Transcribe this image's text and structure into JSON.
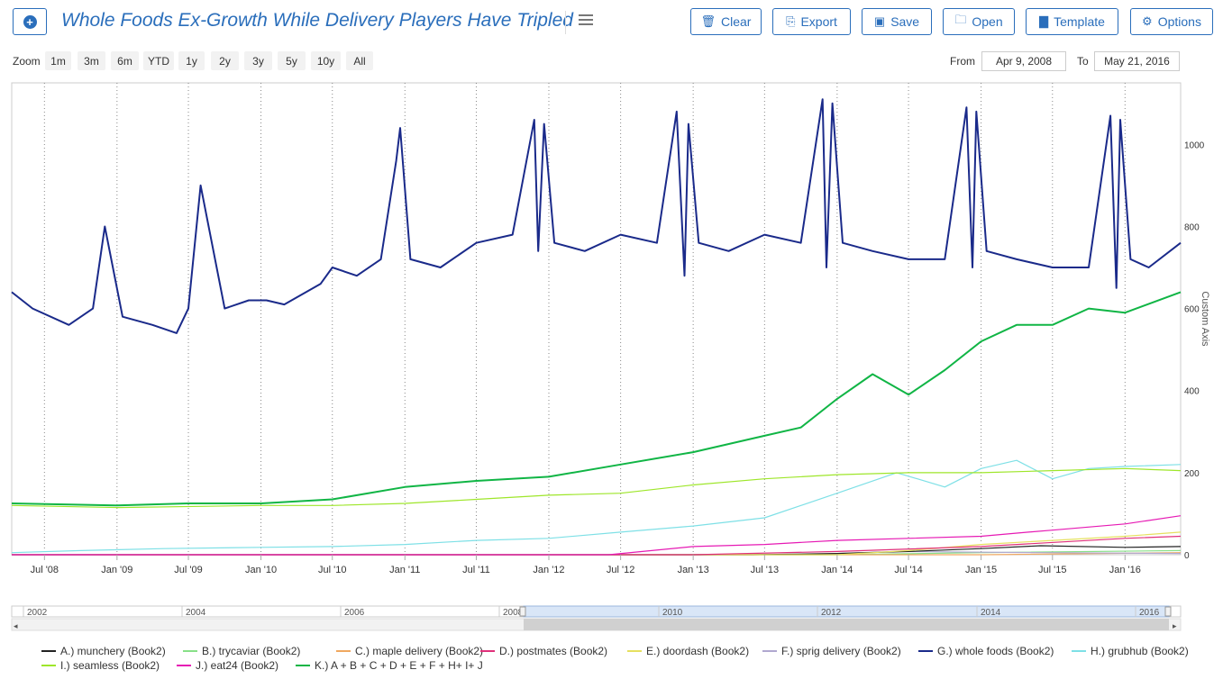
{
  "toolbar": {
    "title": "Whole Foods Ex-Growth While Delivery Players Have Tripled",
    "buttons": {
      "clear": "Clear",
      "export": "Export",
      "save": "Save",
      "open": "Open",
      "template": "Template",
      "options": "Options"
    }
  },
  "zoom": {
    "label": "Zoom",
    "options": [
      "1m",
      "3m",
      "6m",
      "YTD",
      "1y",
      "2y",
      "3y",
      "5y",
      "10y",
      "All"
    ],
    "from_label": "From",
    "from_value": "Apr 9, 2008",
    "to_label": "To",
    "to_value": "May 21, 2016"
  },
  "colors": {
    "accent": "#2a6ebb",
    "whole_foods": "#1a2a8a",
    "total": "#10b545",
    "seamless": "#9ee62a",
    "grubhub": "#7ee0e6",
    "eat24": "#e61ab4",
    "postmates": "#e0307a",
    "munchery": "#222222",
    "doordash": "#e6e060"
  },
  "chart_data": {
    "type": "line",
    "title": "Whole Foods Ex-Growth While Delivery Players Have Tripled",
    "x_range": [
      "2008-04-09",
      "2016-05-21"
    ],
    "x_ticks": [
      "Jul '08",
      "Jan '09",
      "Jul '09",
      "Jan '10",
      "Jul '10",
      "Jan '11",
      "Jul '11",
      "Jan '12",
      "Jul '12",
      "Jan '13",
      "Jul '13",
      "Jan '14",
      "Jul '14",
      "Jan '15",
      "Jul '15",
      "Jan '16"
    ],
    "ylabel": "Custom Axis",
    "ylim": [
      0,
      1150
    ],
    "y_ticks": [
      0,
      200,
      400,
      600,
      800,
      1000
    ],
    "grid": "vertical dotted at x ticks",
    "navigator_ticks": [
      "2002",
      "2004",
      "2006",
      "2008",
      "2010",
      "2012",
      "2014",
      "2016"
    ],
    "series": [
      {
        "name": "A.) munchery (Book2)",
        "color": "#222222",
        "x": [
          "2008-04-09",
          "2013-06-01",
          "2014-01-01",
          "2014-07-01",
          "2015-01-01",
          "2015-06-01",
          "2016-01-01",
          "2016-05-21"
        ],
        "y": [
          0,
          0,
          3,
          8,
          15,
          22,
          18,
          20
        ]
      },
      {
        "name": "B.) trycaviar (Book2)",
        "color": "#88e088",
        "x": [
          "2008-04-09",
          "2014-01-01",
          "2015-01-01",
          "2016-05-21"
        ],
        "y": [
          0,
          0,
          5,
          10
        ]
      },
      {
        "name": "C.) maple delivery (Book2)",
        "color": "#f0a860",
        "x": [
          "2008-04-09",
          "2015-01-01",
          "2016-05-21"
        ],
        "y": [
          0,
          0,
          5
        ]
      },
      {
        "name": "D.) postmates (Book2)",
        "color": "#e0307a",
        "x": [
          "2008-04-09",
          "2013-01-01",
          "2014-01-01",
          "2015-01-01",
          "2016-01-01",
          "2016-05-21"
        ],
        "y": [
          0,
          0,
          8,
          20,
          40,
          45
        ]
      },
      {
        "name": "E.) doordash (Book2)",
        "color": "#e6e060",
        "x": [
          "2008-04-09",
          "2014-01-01",
          "2014-07-01",
          "2015-01-01",
          "2015-07-01",
          "2016-01-01",
          "2016-05-21"
        ],
        "y": [
          0,
          0,
          10,
          25,
          35,
          45,
          55
        ]
      },
      {
        "name": "F.) sprig delivery (Book2)",
        "color": "#b0a8d0",
        "x": [
          "2008-04-09",
          "2013-10-01",
          "2014-06-01",
          "2015-06-01",
          "2016-05-21"
        ],
        "y": [
          0,
          0,
          8,
          5,
          3
        ]
      },
      {
        "name": "G.) whole foods (Book2)",
        "color": "#1a2a8a",
        "x": [
          "2008-04-09",
          "2008-06-01",
          "2008-09-01",
          "2008-11-01",
          "2008-12-01",
          "2009-01-15",
          "2009-04-01",
          "2009-06-01",
          "2009-07-01",
          "2009-08-01",
          "2009-10-01",
          "2009-12-01",
          "2010-01-15",
          "2010-03-01",
          "2010-06-01",
          "2010-07-01",
          "2010-09-01",
          "2010-11-01",
          "2010-12-10",
          "2010-12-20",
          "2011-01-15",
          "2011-04-01",
          "2011-07-01",
          "2011-10-01",
          "2011-11-25",
          "2011-12-05",
          "2011-12-20",
          "2012-01-15",
          "2012-04-01",
          "2012-07-01",
          "2012-10-01",
          "2012-11-20",
          "2012-12-10",
          "2012-12-20",
          "2013-01-15",
          "2013-04-01",
          "2013-07-01",
          "2013-10-01",
          "2013-11-25",
          "2013-12-05",
          "2013-12-20",
          "2014-01-15",
          "2014-04-01",
          "2014-07-01",
          "2014-10-01",
          "2014-11-25",
          "2014-12-10",
          "2014-12-20",
          "2015-01-15",
          "2015-04-01",
          "2015-07-01",
          "2015-10-01",
          "2015-11-25",
          "2015-12-10",
          "2015-12-20",
          "2016-01-15",
          "2016-03-01",
          "2016-05-21"
        ],
        "y": [
          640,
          600,
          560,
          600,
          800,
          580,
          560,
          540,
          600,
          900,
          600,
          620,
          620,
          610,
          660,
          700,
          680,
          720,
          960,
          1040,
          720,
          700,
          760,
          780,
          1060,
          740,
          1050,
          760,
          740,
          780,
          760,
          1080,
          680,
          1050,
          760,
          740,
          780,
          760,
          1110,
          700,
          1100,
          760,
          740,
          720,
          720,
          1090,
          700,
          1080,
          740,
          720,
          700,
          700,
          1070,
          650,
          1060,
          720,
          700,
          760
        ]
      },
      {
        "name": "H.) grubhub (Book2)",
        "color": "#7ee0e6",
        "x": [
          "2008-04-09",
          "2008-10-01",
          "2009-05-01",
          "2010-01-01",
          "2010-07-01",
          "2011-01-01",
          "2011-07-01",
          "2012-01-01",
          "2012-07-01",
          "2013-01-01",
          "2013-07-01",
          "2014-01-01",
          "2014-06-01",
          "2014-10-01",
          "2015-01-01",
          "2015-04-01",
          "2015-07-01",
          "2015-10-01",
          "2016-01-01",
          "2016-05-21"
        ],
        "y": [
          5,
          10,
          15,
          18,
          20,
          25,
          35,
          40,
          55,
          70,
          90,
          150,
          200,
          165,
          210,
          230,
          185,
          210,
          215,
          220
        ]
      },
      {
        "name": "I.) seamless (Book2)",
        "color": "#9ee62a",
        "x": [
          "2008-04-09",
          "2009-01-01",
          "2010-01-01",
          "2010-07-01",
          "2011-01-01",
          "2011-07-01",
          "2012-01-01",
          "2012-07-01",
          "2013-01-01",
          "2013-07-01",
          "2014-01-01",
          "2014-07-01",
          "2015-01-01",
          "2015-07-01",
          "2016-01-01",
          "2016-05-21"
        ],
        "y": [
          120,
          115,
          120,
          120,
          125,
          135,
          145,
          150,
          170,
          185,
          195,
          200,
          200,
          205,
          210,
          205
        ]
      },
      {
        "name": "J.) eat24 (Book2)",
        "color": "#e61ab4",
        "x": [
          "2008-04-09",
          "2012-06-01",
          "2013-01-01",
          "2013-07-01",
          "2014-01-01",
          "2014-07-01",
          "2015-01-01",
          "2015-05-01",
          "2015-07-01",
          "2016-01-01",
          "2016-05-21"
        ],
        "y": [
          0,
          0,
          20,
          25,
          35,
          40,
          45,
          55,
          60,
          75,
          95
        ]
      },
      {
        "name": "K.) A + B + C + D + E + F + H+ I+ J",
        "color": "#10b545",
        "x": [
          "2008-04-09",
          "2009-01-01",
          "2009-07-01",
          "2010-01-01",
          "2010-07-01",
          "2011-01-01",
          "2011-07-01",
          "2012-01-01",
          "2012-07-01",
          "2013-01-01",
          "2013-07-01",
          "2013-10-01",
          "2014-01-01",
          "2014-04-01",
          "2014-07-01",
          "2014-10-01",
          "2015-01-01",
          "2015-04-01",
          "2015-07-01",
          "2015-10-01",
          "2016-01-01",
          "2016-05-21"
        ],
        "y": [
          125,
          120,
          125,
          125,
          135,
          165,
          180,
          190,
          220,
          250,
          290,
          310,
          380,
          440,
          390,
          450,
          520,
          560,
          560,
          600,
          590,
          640
        ]
      }
    ]
  }
}
